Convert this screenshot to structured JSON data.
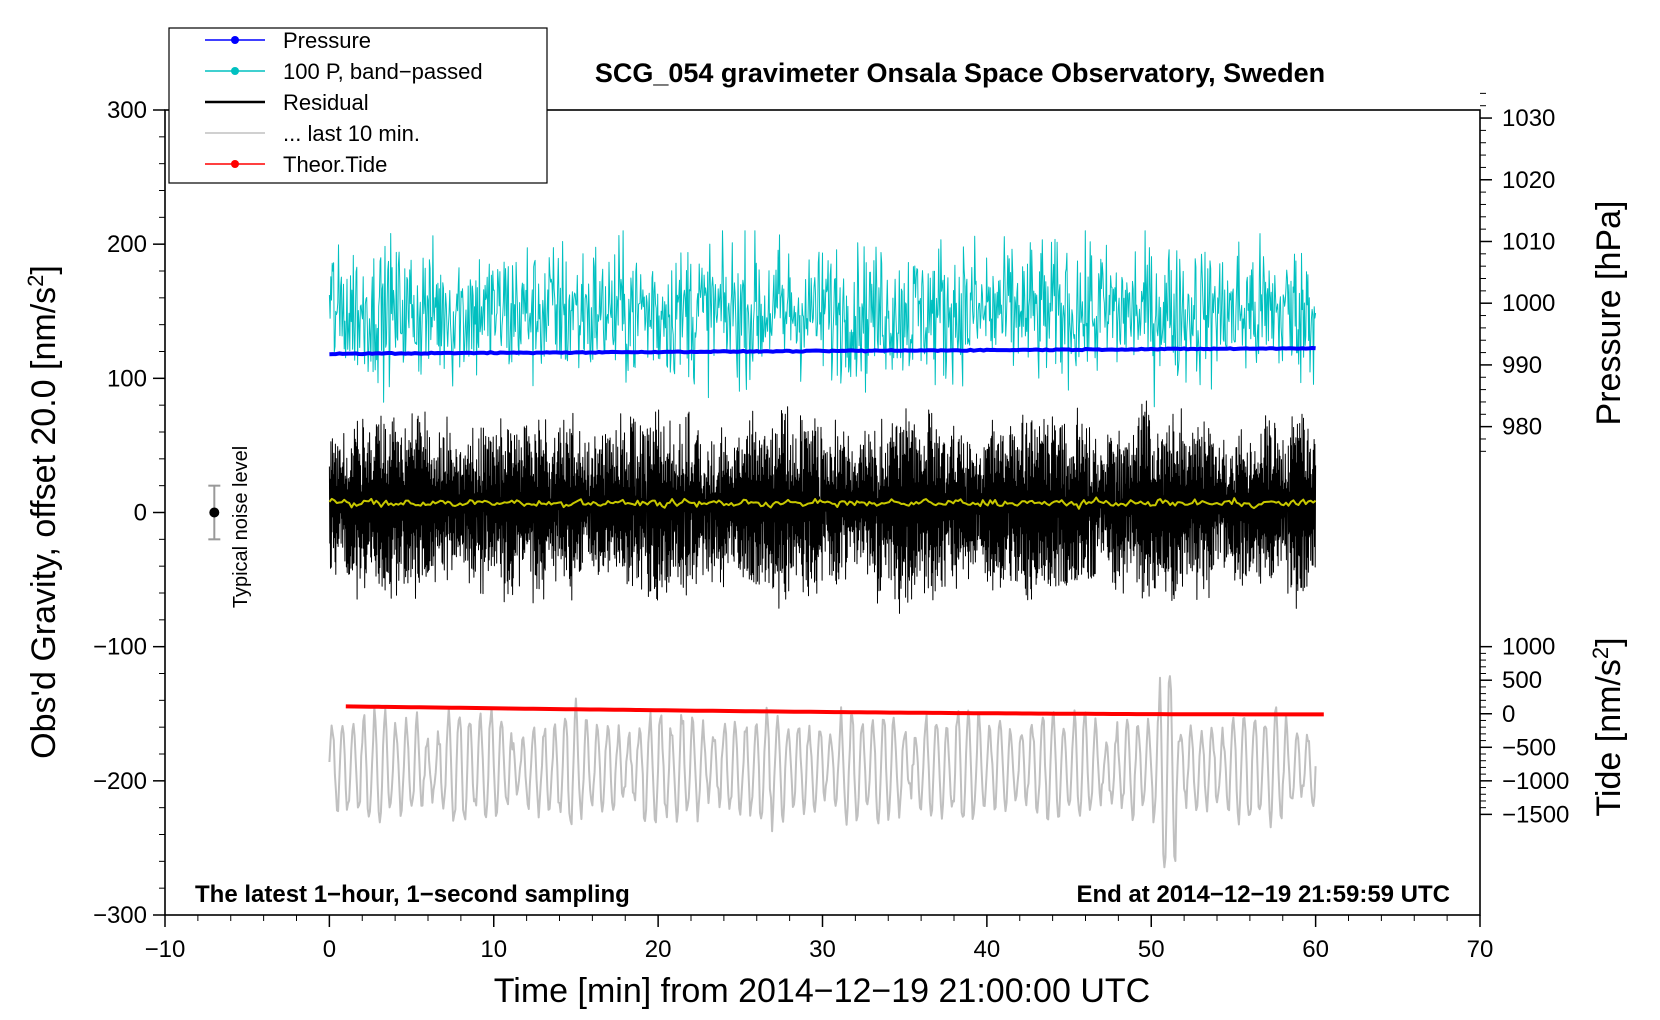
{
  "chart_data": {
    "type": "line",
    "title": "SCG_054 gravimeter Onsala Space Observatory, Sweden",
    "xlabel": "Time [min] from 2014−12−19 21:00:00 UTC",
    "ylabel_left_main": "Obs'd Gravity, offset 20.0 [nm/s",
    "ylabel_left_sup": "2",
    "ylabel_left_close": "]",
    "ylabel_right_pressure": "Pressure [hPa]",
    "ylabel_right_tide_main": "Tide [nm/s",
    "ylabel_right_tide_sup": "2",
    "ylabel_right_tide_close": "]",
    "xlim": [
      -10,
      70
    ],
    "ylim": [
      -300,
      300
    ],
    "x_ticks": [
      -10,
      0,
      10,
      20,
      30,
      40,
      50,
      60,
      70
    ],
    "x_tick_labels": [
      "−10",
      "0",
      "10",
      "20",
      "30",
      "40",
      "50",
      "60",
      "70"
    ],
    "y_ticks": [
      -300,
      -200,
      -100,
      0,
      100,
      200,
      300
    ],
    "y_tick_labels": [
      "−300",
      "−200",
      "−100",
      "0",
      "100",
      "200",
      "300"
    ],
    "pressure_ticks": [
      980,
      990,
      1000,
      1010,
      1020,
      1030
    ],
    "pressure_tick_labels": [
      "980",
      "990",
      "1000",
      "1010",
      "1020",
      "1030"
    ],
    "pressure_map": {
      "value_a": 990,
      "y_a": 110,
      "value_b": 1000,
      "y_b": 156
    },
    "tide_ticks": [
      -1500,
      -1000,
      -500,
      0,
      500,
      1000
    ],
    "tide_tick_labels": [
      "−1500",
      "−1000",
      "−500",
      "0",
      "500",
      "1000"
    ],
    "tide_map": {
      "value_a": 0,
      "y_a": -150,
      "value_b": 1000,
      "y_b": -100
    },
    "legend_position": "top-left",
    "legend": [
      {
        "label": "Pressure",
        "color": "#0000ff",
        "marker": true
      },
      {
        "label": "100 P, band−passed",
        "color": "#00c0c0",
        "marker": true
      },
      {
        "label": "Residual",
        "color": "#000000",
        "marker": false
      },
      {
        "label": "... last 10 min.",
        "color": "#c0c0c0",
        "marker": false
      },
      {
        "label": "Theor.Tide",
        "color": "#ff0000",
        "marker": true
      }
    ],
    "noise_marker": {
      "x": -7,
      "y": 0,
      "low": -20,
      "high": 20,
      "label": "Typical noise level"
    },
    "annotation_left": "The latest 1−hour, 1−second sampling",
    "annotation_right": "End at 2014−12−19 21:59:59 UTC",
    "series": [
      {
        "name": "Pressure",
        "color": "#0000ff",
        "axis": "pressure",
        "x_start": 0,
        "x_end": 60,
        "start": 991.8,
        "end": 992.7,
        "noise": 0.15
      },
      {
        "name": "100 P, band−passed",
        "color": "#00c0c0",
        "axis": "gravity",
        "x_start": 0,
        "x_end": 60,
        "mean": 150,
        "amplitude": 28,
        "min": 75,
        "max": 210
      },
      {
        "name": "Residual",
        "color": "#000000",
        "axis": "gravity",
        "x_start": 0,
        "x_end": 60,
        "mean": 5,
        "amplitude": 30,
        "min": -105,
        "max": 100
      },
      {
        "name": "Residual (smoothed)",
        "color": "#c8c800",
        "axis": "gravity",
        "x_start": 0,
        "x_end": 60,
        "mean": 7,
        "noise": 1.2
      },
      {
        "name": "... last 10 min.",
        "color": "#c0c0c0",
        "axis": "gravity",
        "x_start": 0,
        "x_end": 60,
        "mean": -190,
        "amplitude": 28,
        "min": -270,
        "max": -100
      },
      {
        "name": "Theor.Tide",
        "color": "#ff0000",
        "axis": "tide",
        "x_start": 1,
        "x_end": 60.5,
        "start": 110,
        "end": -10
      }
    ]
  }
}
